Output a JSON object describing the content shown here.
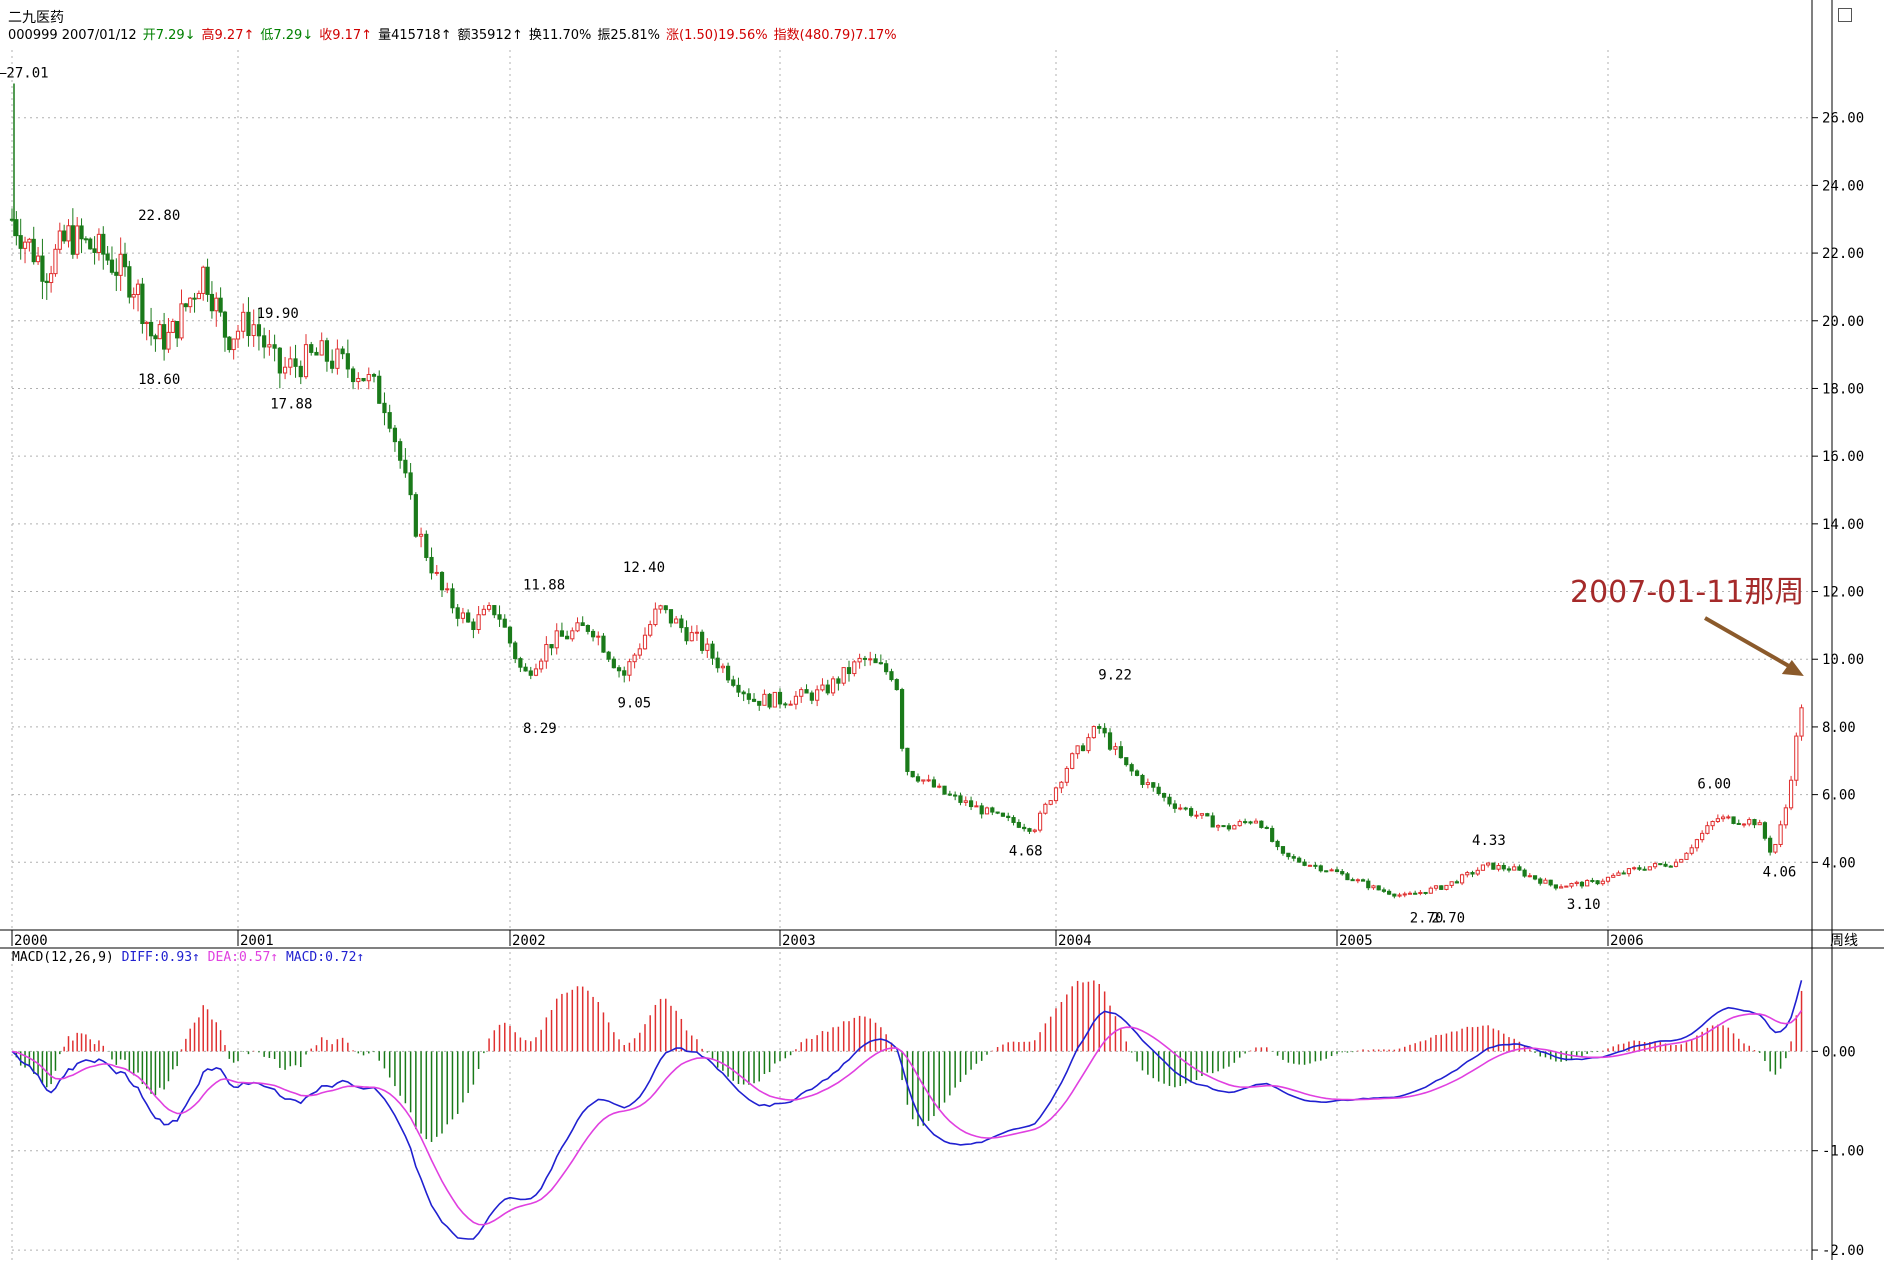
{
  "header": {
    "stock_name": "二九医药",
    "line": [
      {
        "label": "000999 2007/01/12",
        "value": "",
        "color": "#000000"
      },
      {
        "label": "开",
        "value": "7.29↓",
        "color": "#008000"
      },
      {
        "label": "高",
        "value": "9.27↑",
        "color": "#d00000"
      },
      {
        "label": "低",
        "value": "7.29↓",
        "color": "#008000"
      },
      {
        "label": "收",
        "value": "9.17↑",
        "color": "#d00000"
      },
      {
        "label": "量",
        "value": "415718↑",
        "color": "#000000"
      },
      {
        "label": "额",
        "value": "35912↑",
        "color": "#000000"
      },
      {
        "label": "换",
        "value": "11.70%",
        "color": "#000000"
      },
      {
        "label": "振",
        "value": "25.81%",
        "color": "#000000"
      },
      {
        "label": "涨",
        "value": "(1.50)19.56%",
        "color": "#d00000"
      },
      {
        "label": "指数",
        "value": "(480.79)7.17%",
        "color": "#d00000"
      }
    ]
  },
  "annotation": {
    "text": "2007-01-11那周",
    "color": "#a52a2a"
  },
  "period_label": "周线",
  "colors": {
    "up": "#e03030",
    "down": "#1a7a1a",
    "diff": "#2020d0",
    "dea": "#e040e0",
    "grid": "#b0b0b0"
  },
  "chart_data": [
    {
      "type": "candlestick",
      "title": "",
      "x_labels": [
        "2000",
        "2001",
        "2002",
        "2003",
        "2004",
        "2005",
        "2006"
      ],
      "ylim": [
        2.0,
        28.0
      ],
      "yticks": [
        "26.00",
        "24.00",
        "22.00",
        "20.00",
        "18.00",
        "16.00",
        "14.00",
        "12.00",
        "10.00",
        "8.00",
        "6.00",
        "4.00"
      ],
      "price_anchors": [
        [
          2000.0,
          23.0
        ],
        [
          2000.05,
          22.5
        ],
        [
          2000.15,
          21.5
        ],
        [
          2000.25,
          22.5
        ],
        [
          2000.4,
          22.0
        ],
        [
          2000.55,
          21.0
        ],
        [
          2000.62,
          19.5
        ],
        [
          2000.7,
          19.5
        ],
        [
          2000.85,
          21.5
        ],
        [
          2000.95,
          19.5
        ],
        [
          2001.05,
          20.0
        ],
        [
          2001.15,
          18.5
        ],
        [
          2001.3,
          19.0
        ],
        [
          2001.45,
          18.5
        ],
        [
          2001.55,
          17.5
        ],
        [
          2001.65,
          14.0
        ],
        [
          2001.75,
          12.0
        ],
        [
          2001.85,
          11.0
        ],
        [
          2001.95,
          11.5
        ],
        [
          2002.05,
          9.5
        ],
        [
          2002.15,
          10.5
        ],
        [
          2002.3,
          11.0
        ],
        [
          2002.42,
          9.5
        ],
        [
          2002.55,
          11.5
        ],
        [
          2002.7,
          10.5
        ],
        [
          2002.9,
          8.8
        ],
        [
          2003.0,
          8.8
        ],
        [
          2003.15,
          9.0
        ],
        [
          2003.3,
          10.0
        ],
        [
          2003.42,
          9.5
        ],
        [
          2003.45,
          6.8
        ],
        [
          2003.6,
          6.0
        ],
        [
          2003.8,
          5.3
        ],
        [
          2003.92,
          5.0
        ],
        [
          2004.05,
          7.0
        ],
        [
          2004.15,
          8.0
        ],
        [
          2004.25,
          6.8
        ],
        [
          2004.4,
          5.8
        ],
        [
          2004.6,
          5.0
        ],
        [
          2004.72,
          5.3
        ],
        [
          2004.8,
          4.2
        ],
        [
          2005.0,
          3.7
        ],
        [
          2005.15,
          3.2
        ],
        [
          2005.25,
          3.0
        ],
        [
          2005.4,
          3.3
        ],
        [
          2005.55,
          3.9
        ],
        [
          2005.65,
          3.8
        ],
        [
          2005.8,
          3.3
        ],
        [
          2005.95,
          3.4
        ],
        [
          2006.1,
          3.8
        ],
        [
          2006.25,
          4.0
        ],
        [
          2006.4,
          5.3
        ],
        [
          2006.55,
          5.2
        ],
        [
          2006.6,
          4.3
        ],
        [
          2006.62,
          4.6
        ],
        [
          2006.66,
          5.8
        ],
        [
          2006.68,
          7.0
        ],
        [
          2006.7,
          8.0
        ],
        [
          2006.72,
          9.17
        ]
      ],
      "labels": [
        {
          "text": "27.01",
          "x": 2000.0,
          "y": 27.01
        },
        {
          "text": "22.80",
          "x": 2000.62,
          "y": 22.8
        },
        {
          "text": "18.60",
          "x": 2000.62,
          "y": 18.6
        },
        {
          "text": "19.90",
          "x": 2001.12,
          "y": 19.9
        },
        {
          "text": "17.88",
          "x": 2001.17,
          "y": 17.88
        },
        {
          "text": "11.88",
          "x": 2002.1,
          "y": 11.88
        },
        {
          "text": "8.29",
          "x": 2002.1,
          "y": 8.29
        },
        {
          "text": "12.40",
          "x": 2002.47,
          "y": 12.4
        },
        {
          "text": "9.05",
          "x": 2002.45,
          "y": 9.05
        },
        {
          "text": "4.68",
          "x": 2003.88,
          "y": 4.68
        },
        {
          "text": "9.22",
          "x": 2004.2,
          "y": 9.22
        },
        {
          "text": "2.70",
          "x": 2005.32,
          "y": 2.7
        },
        {
          "text": "2.70",
          "x": 2005.4,
          "y": 2.7
        },
        {
          "text": "4.33",
          "x": 2005.55,
          "y": 4.33
        },
        {
          "text": "3.10",
          "x": 2005.9,
          "y": 3.1
        },
        {
          "text": "6.00",
          "x": 2006.38,
          "y": 6.0
        },
        {
          "text": "4.06",
          "x": 2006.62,
          "y": 4.06
        }
      ]
    },
    {
      "type": "macd",
      "title": "MACD(12,26,9)",
      "legend": [
        {
          "name": "DIFF",
          "value": "0.93↑"
        },
        {
          "name": "DEA",
          "value": "0.57↑"
        },
        {
          "name": "MACD",
          "value": "0.72↑"
        }
      ],
      "ylim": [
        -2.1,
        1.0
      ],
      "yticks": [
        "0.00",
        "-1.00",
        "-2.00"
      ]
    }
  ]
}
